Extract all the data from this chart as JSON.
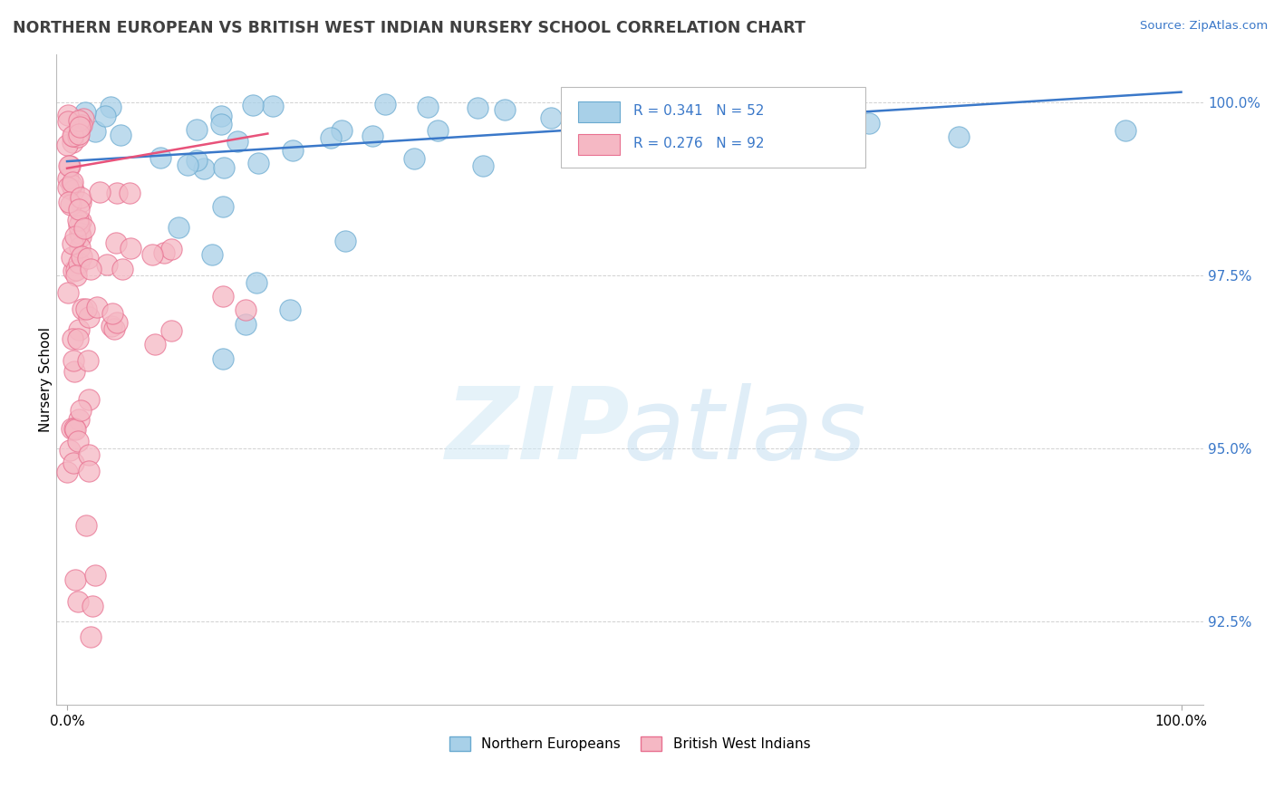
{
  "title": "NORTHERN EUROPEAN VS BRITISH WEST INDIAN NURSERY SCHOOL CORRELATION CHART",
  "source": "Source: ZipAtlas.com",
  "ylabel": "Nursery School",
  "y_ticks": [
    92.5,
    95.0,
    97.5,
    100.0
  ],
  "y_tick_labels": [
    "92.5%",
    "95.0%",
    "97.5%",
    "100.0%"
  ],
  "xmin": -0.01,
  "xmax": 1.02,
  "ymin": 91.3,
  "ymax": 100.7,
  "legend_r_blue": "R = 0.341",
  "legend_n_blue": "N = 52",
  "legend_r_pink": "R = 0.276",
  "legend_n_pink": "N = 92",
  "blue_color": "#A8D0E8",
  "blue_edge_color": "#6AAAD0",
  "pink_color": "#F5B8C4",
  "pink_edge_color": "#E87090",
  "blue_line_color": "#3A78C9",
  "pink_line_color": "#E8527A",
  "grid_color": "#CCCCCC",
  "title_color": "#404040",
  "source_color": "#3A78C9",
  "tick_color": "#3A78C9",
  "watermark_zip_color": "#D0E8F5",
  "watermark_atlas_color": "#B8D8EE"
}
